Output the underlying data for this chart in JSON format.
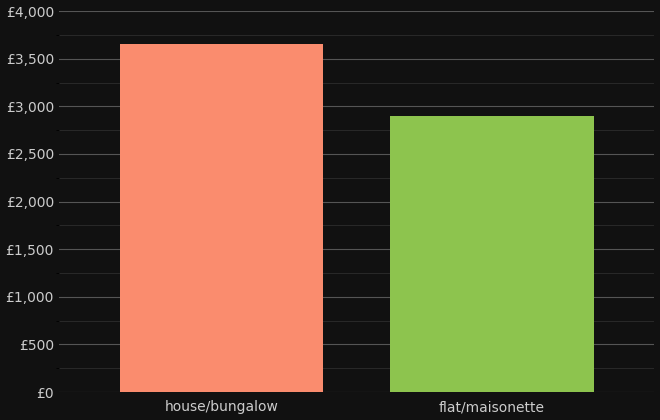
{
  "categories": [
    "house/bungalow",
    "flat/maisonette"
  ],
  "values": [
    3650,
    2900
  ],
  "bar_colors": [
    "#FA8C6E",
    "#8DC44E"
  ],
  "background_color": "#111111",
  "text_color": "#CCCCCC",
  "major_grid_color": "#555555",
  "minor_grid_color": "#333333",
  "ylim": [
    0,
    4000
  ],
  "yticks_major": [
    0,
    500,
    1000,
    1500,
    2000,
    2500,
    3000,
    3500,
    4000
  ],
  "yticks_minor": [
    250,
    750,
    1250,
    1750,
    2250,
    2750,
    3250,
    3750
  ],
  "bar_positions": [
    1,
    2
  ],
  "bar_width": 0.75,
  "xlim": [
    0.4,
    2.6
  ],
  "xlabel_fontsize": 10,
  "tick_fontsize": 10
}
